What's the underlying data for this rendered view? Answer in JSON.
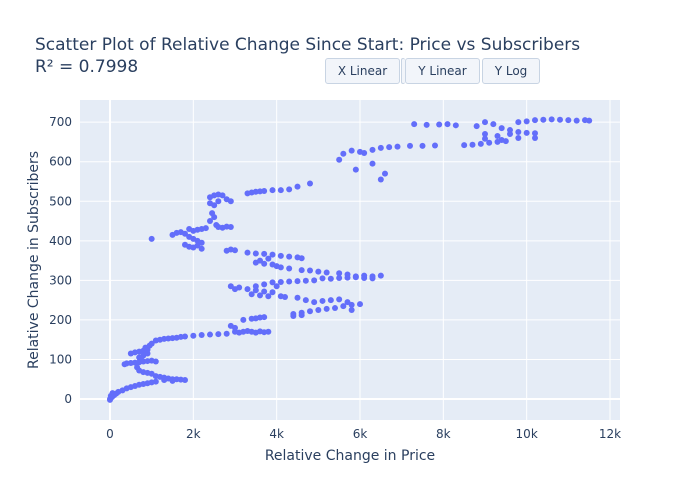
{
  "chart_data": {
    "type": "scatter",
    "title": "Scatter Plot of Relative Change Since Start: Price vs Subscribers",
    "subtitle": "R² = 0.7998",
    "xlabel": "Relative Change in Price",
    "ylabel": "Relative Change in Subscribers",
    "xlim": [
      -720,
      12240
    ],
    "ylim": [
      -53,
      756
    ],
    "x_ticks": [
      0,
      2000,
      4000,
      6000,
      8000,
      10000,
      12000
    ],
    "x_tick_labels": [
      "0",
      "2k",
      "4k",
      "6k",
      "8k",
      "10k",
      "12k"
    ],
    "y_ticks": [
      0,
      100,
      200,
      300,
      400,
      500,
      600,
      700
    ],
    "y_tick_labels": [
      "0",
      "100",
      "200",
      "300",
      "400",
      "500",
      "600",
      "700"
    ],
    "grid": true,
    "marker_color": "#636efa",
    "background_color": "#e5ecf6",
    "points": [
      [
        0,
        0
      ],
      [
        0,
        -2
      ],
      [
        20,
        8
      ],
      [
        60,
        15
      ],
      [
        50,
        5
      ],
      [
        100,
        10
      ],
      [
        150,
        14
      ],
      [
        200,
        18
      ],
      [
        300,
        22
      ],
      [
        400,
        27
      ],
      [
        500,
        30
      ],
      [
        600,
        33
      ],
      [
        700,
        36
      ],
      [
        800,
        38
      ],
      [
        900,
        40
      ],
      [
        1000,
        42
      ],
      [
        1100,
        44
      ],
      [
        350,
        88
      ],
      [
        400,
        90
      ],
      [
        500,
        91
      ],
      [
        600,
        92
      ],
      [
        700,
        93
      ],
      [
        800,
        95
      ],
      [
        900,
        96
      ],
      [
        1000,
        97
      ],
      [
        1100,
        95
      ],
      [
        500,
        115
      ],
      [
        600,
        118
      ],
      [
        700,
        120
      ],
      [
        800,
        122
      ],
      [
        700,
        105
      ],
      [
        800,
        110
      ],
      [
        900,
        115
      ],
      [
        650,
        80
      ],
      [
        700,
        72
      ],
      [
        800,
        68
      ],
      [
        900,
        66
      ],
      [
        1000,
        64
      ],
      [
        750,
        100
      ],
      [
        850,
        130
      ],
      [
        900,
        125
      ],
      [
        950,
        135
      ],
      [
        1000,
        140
      ],
      [
        1100,
        148
      ],
      [
        1200,
        150
      ],
      [
        1300,
        152
      ],
      [
        1400,
        153
      ],
      [
        1500,
        154
      ],
      [
        1600,
        155
      ],
      [
        1700,
        157
      ],
      [
        1800,
        158
      ],
      [
        2000,
        160
      ],
      [
        2200,
        162
      ],
      [
        2400,
        163
      ],
      [
        2600,
        164
      ],
      [
        2800,
        165
      ],
      [
        1100,
        58
      ],
      [
        1200,
        56
      ],
      [
        1300,
        54
      ],
      [
        1400,
        52
      ],
      [
        1500,
        50
      ],
      [
        1600,
        50
      ],
      [
        1700,
        49
      ],
      [
        1800,
        48
      ],
      [
        1300,
        48
      ],
      [
        1500,
        46
      ],
      [
        3000,
        170
      ],
      [
        3100,
        168
      ],
      [
        3200,
        170
      ],
      [
        3300,
        172
      ],
      [
        3400,
        170
      ],
      [
        3500,
        168
      ],
      [
        3600,
        171
      ],
      [
        3700,
        169
      ],
      [
        3800,
        170
      ],
      [
        2900,
        185
      ],
      [
        3000,
        180
      ],
      [
        3200,
        200
      ],
      [
        3400,
        203
      ],
      [
        3500,
        204
      ],
      [
        3600,
        206
      ],
      [
        3700,
        207
      ],
      [
        1000,
        405
      ],
      [
        1500,
        415
      ],
      [
        1600,
        420
      ],
      [
        1700,
        422
      ],
      [
        1800,
        418
      ],
      [
        1900,
        410
      ],
      [
        2000,
        405
      ],
      [
        2100,
        400
      ],
      [
        2200,
        395
      ],
      [
        1800,
        390
      ],
      [
        1900,
        385
      ],
      [
        2000,
        383
      ],
      [
        2100,
        388
      ],
      [
        2200,
        380
      ],
      [
        1900,
        430
      ],
      [
        2000,
        425
      ],
      [
        2100,
        428
      ],
      [
        2200,
        430
      ],
      [
        2300,
        432
      ],
      [
        2400,
        450
      ],
      [
        2450,
        470
      ],
      [
        2500,
        490
      ],
      [
        2500,
        460
      ],
      [
        2550,
        440
      ],
      [
        2600,
        435
      ],
      [
        2700,
        433
      ],
      [
        2800,
        436
      ],
      [
        2900,
        435
      ],
      [
        2400,
        510
      ],
      [
        2500,
        515
      ],
      [
        2600,
        517
      ],
      [
        2700,
        515
      ],
      [
        2800,
        505
      ],
      [
        2900,
        500
      ],
      [
        2400,
        495
      ],
      [
        2600,
        500
      ],
      [
        3300,
        520
      ],
      [
        3400,
        522
      ],
      [
        3500,
        524
      ],
      [
        3600,
        525
      ],
      [
        3700,
        526
      ],
      [
        3900,
        528
      ],
      [
        4100,
        528
      ],
      [
        4300,
        530
      ],
      [
        4500,
        537
      ],
      [
        4800,
        545
      ],
      [
        2800,
        375
      ],
      [
        2900,
        378
      ],
      [
        3000,
        376
      ],
      [
        3300,
        370
      ],
      [
        3500,
        368
      ],
      [
        3700,
        367
      ],
      [
        3900,
        365
      ],
      [
        4100,
        362
      ],
      [
        4300,
        360
      ],
      [
        4500,
        358
      ],
      [
        4600,
        356
      ],
      [
        3500,
        345
      ],
      [
        3700,
        342
      ],
      [
        3900,
        340
      ],
      [
        4000,
        336
      ],
      [
        4100,
        333
      ],
      [
        3600,
        350
      ],
      [
        3800,
        355
      ],
      [
        4300,
        330
      ],
      [
        4600,
        326
      ],
      [
        4800,
        325
      ],
      [
        5000,
        322
      ],
      [
        5200,
        320
      ],
      [
        5500,
        318
      ],
      [
        5700,
        315
      ],
      [
        5900,
        310
      ],
      [
        6100,
        312
      ],
      [
        6300,
        310
      ],
      [
        6500,
        312
      ],
      [
        2900,
        285
      ],
      [
        3100,
        282
      ],
      [
        3300,
        278
      ],
      [
        3500,
        275
      ],
      [
        3700,
        272
      ],
      [
        3900,
        270
      ],
      [
        3000,
        278
      ],
      [
        3400,
        265
      ],
      [
        3600,
        262
      ],
      [
        3800,
        260
      ],
      [
        4100,
        260
      ],
      [
        4200,
        258
      ],
      [
        4500,
        256
      ],
      [
        3900,
        295
      ],
      [
        4100,
        296
      ],
      [
        4300,
        297
      ],
      [
        4500,
        298
      ],
      [
        4700,
        299
      ],
      [
        4900,
        300
      ],
      [
        3700,
        290
      ],
      [
        3500,
        285
      ],
      [
        4000,
        285
      ],
      [
        5100,
        305
      ],
      [
        5300,
        304
      ],
      [
        5500,
        306
      ],
      [
        5700,
        307
      ],
      [
        5900,
        308
      ],
      [
        6100,
        306
      ],
      [
        6300,
        305
      ],
      [
        4400,
        215
      ],
      [
        4600,
        218
      ],
      [
        4800,
        222
      ],
      [
        5000,
        225
      ],
      [
        5200,
        228
      ],
      [
        5400,
        230
      ],
      [
        5600,
        235
      ],
      [
        5800,
        238
      ],
      [
        6000,
        240
      ],
      [
        4700,
        250
      ],
      [
        4900,
        245
      ],
      [
        5100,
        248
      ],
      [
        5300,
        250
      ],
      [
        5500,
        252
      ],
      [
        5700,
        245
      ],
      [
        5800,
        225
      ],
      [
        4400,
        210
      ],
      [
        4600,
        212
      ],
      [
        5500,
        605
      ],
      [
        5600,
        620
      ],
      [
        5800,
        628
      ],
      [
        6000,
        625
      ],
      [
        6100,
        622
      ],
      [
        6300,
        630
      ],
      [
        6500,
        635
      ],
      [
        6700,
        637
      ],
      [
        6900,
        638
      ],
      [
        5900,
        580
      ],
      [
        6300,
        595
      ],
      [
        6500,
        555
      ],
      [
        6600,
        570
      ],
      [
        7200,
        640
      ],
      [
        7500,
        640
      ],
      [
        7800,
        641
      ],
      [
        7300,
        695
      ],
      [
        7600,
        693
      ],
      [
        7900,
        694
      ],
      [
        8100,
        695
      ],
      [
        8300,
        692
      ],
      [
        8500,
        642
      ],
      [
        8700,
        643
      ],
      [
        8900,
        645
      ],
      [
        9100,
        648
      ],
      [
        9300,
        650
      ],
      [
        9500,
        652
      ],
      [
        9000,
        700
      ],
      [
        9200,
        695
      ],
      [
        9400,
        685
      ],
      [
        9600,
        680
      ],
      [
        8800,
        690
      ],
      [
        9000,
        670
      ],
      [
        9300,
        665
      ],
      [
        9600,
        670
      ],
      [
        9800,
        675
      ],
      [
        10000,
        673
      ],
      [
        10200,
        672
      ],
      [
        9000,
        658
      ],
      [
        9400,
        655
      ],
      [
        9800,
        660
      ],
      [
        10200,
        660
      ],
      [
        9800,
        700
      ],
      [
        10000,
        702
      ],
      [
        10200,
        705
      ],
      [
        10400,
        706
      ],
      [
        10600,
        707
      ],
      [
        10800,
        706
      ],
      [
        11000,
        705
      ],
      [
        11200,
        704
      ],
      [
        11400,
        705
      ],
      [
        11500,
        704
      ]
    ]
  },
  "buttons": [
    "X Linear",
    "Y Linear",
    "Y Log"
  ]
}
